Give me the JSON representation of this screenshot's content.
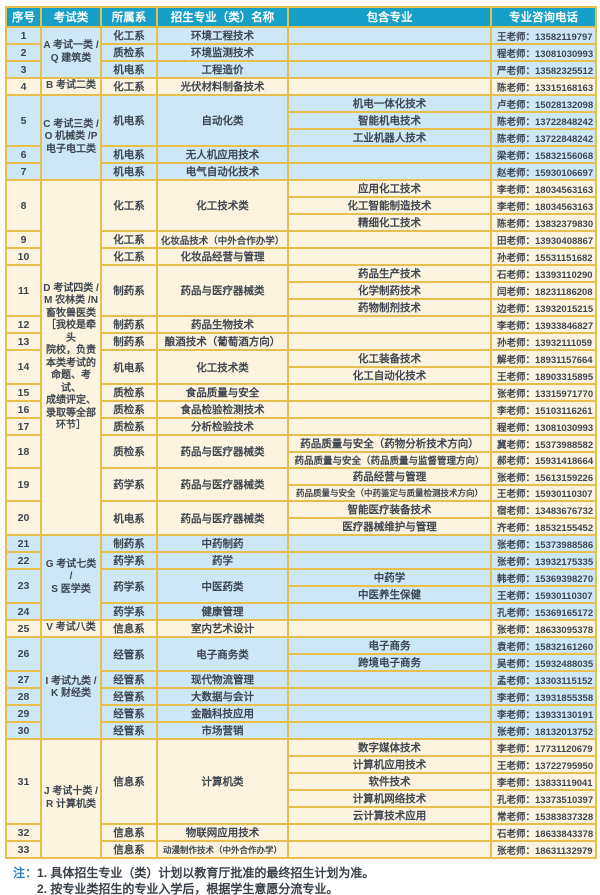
{
  "colors": {
    "header_bg": "#169fc7",
    "header_text": "#ffffff",
    "row_blue": "#cde7f7",
    "row_cream": "#fcf4e0",
    "border": "#e6bf4f",
    "body_text": "#3e4650",
    "note_label": "#2f80c3",
    "note_text": "#3a4148"
  },
  "table": {
    "columns": [
      "序号",
      "考试类",
      "所属系",
      "招生专业（类）名称",
      "包含专业",
      "专业咨询电话"
    ],
    "groups": [
      {
        "category_lines": [
          "A 考试一类 /",
          "Q 建筑类"
        ],
        "theme": "blue",
        "rows": [
          {
            "no": "1",
            "dept": "化工系",
            "major": "环境工程技术",
            "subs": [
              {
                "included": "",
                "phone": "王老师：13582119797"
              }
            ]
          },
          {
            "no": "2",
            "dept": "质检系",
            "major": "环境监测技术",
            "subs": [
              {
                "included": "",
                "phone": "程老师：13081030993"
              }
            ]
          },
          {
            "no": "3",
            "dept": "机电系",
            "major": "工程造价",
            "subs": [
              {
                "included": "",
                "phone": "严老师：13582325512"
              }
            ]
          }
        ]
      },
      {
        "category_lines": [
          "B 考试二类"
        ],
        "theme": "cream",
        "rows": [
          {
            "no": "4",
            "dept": "化工系",
            "major": "光伏材料制备技术",
            "subs": [
              {
                "included": "",
                "phone": "陈老师：13315168163"
              }
            ]
          }
        ]
      },
      {
        "category_lines": [
          "C 考试三类 /",
          "O 机械类 /P",
          "电子电工类"
        ],
        "theme": "blue",
        "rows": [
          {
            "no": "5",
            "dept": "机电系",
            "major": "自动化类",
            "subs": [
              {
                "included": "机电一体化技术",
                "phone": "卢老师：15028132098"
              },
              {
                "included": "智能机电技术",
                "phone": "陈老师：13722848242"
              },
              {
                "included": "工业机器人技术",
                "phone": "陈老师：13722848242"
              }
            ]
          },
          {
            "no": "6",
            "dept": "机电系",
            "major": "无人机应用技术",
            "subs": [
              {
                "included": "",
                "phone": "梁老师：15832156068"
              }
            ]
          },
          {
            "no": "7",
            "dept": "机电系",
            "major": "电气自动化技术",
            "subs": [
              {
                "included": "",
                "phone": "赵老师：15930106697"
              }
            ]
          }
        ]
      },
      {
        "category_lines": [
          "D 考试四类 /",
          "M 农林类 /N",
          "畜牧兽医类",
          "［我校是牵头",
          "院校，负责",
          "本类考试的",
          "命题、考试、",
          "成绩评定、",
          "录取等全部",
          "环节］"
        ],
        "theme": "cream",
        "rows": [
          {
            "no": "8",
            "dept": "化工系",
            "major": "化工技术类",
            "subs": [
              {
                "included": "应用化工技术",
                "phone": "李老师：18034563163"
              },
              {
                "included": "化工智能制造技术",
                "phone": "李老师：18034563163"
              },
              {
                "included": "精细化工技术",
                "phone": "陈老师：13832379830"
              }
            ]
          },
          {
            "no": "9",
            "dept": "化工系",
            "major": "化妆品技术（中外合作办学）",
            "subs": [
              {
                "included": "",
                "phone": "田老师：13930408867"
              }
            ]
          },
          {
            "no": "10",
            "dept": "化工系",
            "major": "化妆品经营与管理",
            "subs": [
              {
                "included": "",
                "phone": "孙老师：15531151682"
              }
            ]
          },
          {
            "no": "11",
            "dept": "制药系",
            "major": "药品与医疗器械类",
            "subs": [
              {
                "included": "药品生产技术",
                "phone": "石老师：13393110290"
              },
              {
                "included": "化学制药技术",
                "phone": "闫老师：18231186208"
              },
              {
                "included": "药物制剂技术",
                "phone": "边老师：13932015215"
              }
            ]
          },
          {
            "no": "12",
            "dept": "制药系",
            "major": "药品生物技术",
            "subs": [
              {
                "included": "",
                "phone": "李老师：13933846827"
              }
            ]
          },
          {
            "no": "13",
            "dept": "制药系",
            "major": "酿酒技术（葡萄酒方向）",
            "subs": [
              {
                "included": "",
                "phone": "孙老师：13932111059"
              }
            ]
          },
          {
            "no": "14",
            "dept": "机电系",
            "major": "化工技术类",
            "subs": [
              {
                "included": "化工装备技术",
                "phone": "解老师：18931157664"
              },
              {
                "included": "化工自动化技术",
                "phone": "王老师：18903315895"
              }
            ]
          },
          {
            "no": "15",
            "dept": "质检系",
            "major": "食品质量与安全",
            "subs": [
              {
                "included": "",
                "phone": "张老师：13315971770"
              }
            ]
          },
          {
            "no": "16",
            "dept": "质检系",
            "major": "食品检验检测技术",
            "subs": [
              {
                "included": "",
                "phone": "李老师：15103116261"
              }
            ]
          },
          {
            "no": "17",
            "dept": "质检系",
            "major": "分析检验技术",
            "subs": [
              {
                "included": "",
                "phone": "程老师：13081030993"
              }
            ]
          },
          {
            "no": "18",
            "dept": "质检系",
            "major": "药品与医疗器械类",
            "subs": [
              {
                "included": "药品质量与安全（药物分析技术方向）",
                "phone": "冀老师：15373988582"
              },
              {
                "included": "药品质量与安全（药品质量与监督管理方向）",
                "phone": "郝老师：15931418664"
              }
            ]
          },
          {
            "no": "19",
            "dept": "药学系",
            "major": "药品与医疗器械类",
            "subs": [
              {
                "included": "药品经营与管理",
                "phone": "张老师：15613159226"
              },
              {
                "included": "药品质量与安全（中药鉴定与质量检测技术方向）",
                "phone": "王老师：15930110307"
              }
            ]
          },
          {
            "no": "20",
            "dept": "机电系",
            "major": "药品与医疗器械类",
            "subs": [
              {
                "included": "智能医疗装备技术",
                "phone": "宿老师：13483676732"
              },
              {
                "included": "医疗器械维护与管理",
                "phone": "齐老师：18532155452"
              }
            ]
          }
        ]
      },
      {
        "category_lines": [
          "G 考试七类 /",
          "S 医学类"
        ],
        "theme": "blue",
        "rows": [
          {
            "no": "21",
            "dept": "制药系",
            "major": "中药制药",
            "subs": [
              {
                "included": "",
                "phone": "张老师：15373988586"
              }
            ]
          },
          {
            "no": "22",
            "dept": "药学系",
            "major": "药学",
            "subs": [
              {
                "included": "",
                "phone": "张老师：13932175335"
              }
            ]
          },
          {
            "no": "23",
            "dept": "药学系",
            "major": "中医药类",
            "subs": [
              {
                "included": "中药学",
                "phone": "韩老师：15369398270"
              },
              {
                "included": "中医养生保健",
                "phone": "王老师：15930110307"
              }
            ]
          },
          {
            "no": "24",
            "dept": "药学系",
            "major": "健康管理",
            "subs": [
              {
                "included": "",
                "phone": "孔老师：15369165172"
              }
            ]
          }
        ]
      },
      {
        "category_lines": [
          "V 考试八类"
        ],
        "theme": "cream",
        "rows": [
          {
            "no": "25",
            "dept": "信息系",
            "major": "室内艺术设计",
            "subs": [
              {
                "included": "",
                "phone": "张老师：18633095378"
              }
            ]
          }
        ]
      },
      {
        "category_lines": [
          "I 考试九类 /",
          "K 财经类"
        ],
        "theme": "blue",
        "rows": [
          {
            "no": "26",
            "dept": "经管系",
            "major": "电子商务类",
            "subs": [
              {
                "included": "电子商务",
                "phone": "袁老师：15832161260"
              },
              {
                "included": "跨境电子商务",
                "phone": "吴老师：15932488035"
              }
            ]
          },
          {
            "no": "27",
            "dept": "经管系",
            "major": "现代物流管理",
            "subs": [
              {
                "included": "",
                "phone": "孟老师：13303115152"
              }
            ]
          },
          {
            "no": "28",
            "dept": "经管系",
            "major": "大数据与会计",
            "subs": [
              {
                "included": "",
                "phone": "李老师：13931855358"
              }
            ]
          },
          {
            "no": "29",
            "dept": "经管系",
            "major": "金融科技应用",
            "subs": [
              {
                "included": "",
                "phone": "李老师：13933130191"
              }
            ]
          },
          {
            "no": "30",
            "dept": "经管系",
            "major": "市场营销",
            "subs": [
              {
                "included": "",
                "phone": "张老师：18132013752"
              }
            ]
          }
        ]
      },
      {
        "category_lines": [
          "J 考试十类 /",
          "R 计算机类"
        ],
        "theme": "cream",
        "rows": [
          {
            "no": "31",
            "dept": "信息系",
            "major": "计算机类",
            "subs": [
              {
                "included": "数字媒体技术",
                "phone": "李老师：17731120679"
              },
              {
                "included": "计算机应用技术",
                "phone": "王老师：13722795950"
              },
              {
                "included": "软件技术",
                "phone": "李老师：13833119041"
              },
              {
                "included": "计算机网络技术",
                "phone": "孔老师：13373510397"
              },
              {
                "included": "云计算技术应用",
                "phone": "常老师：15383837328"
              }
            ]
          },
          {
            "no": "32",
            "dept": "信息系",
            "major": "物联网应用技术",
            "subs": [
              {
                "included": "",
                "phone": "石老师：18633843378"
              }
            ]
          },
          {
            "no": "33",
            "dept": "信息系",
            "major": "动漫制作技术（中外合作办学）",
            "subs": [
              {
                "included": "",
                "phone": "张老师：18631132979"
              }
            ]
          }
        ]
      }
    ]
  },
  "notes": {
    "label": "注：",
    "items": [
      "1. 具体招生专业（类）计划以教育厅批准的最终招生计划为准。",
      "2. 按专业类招生的专业入学后，根据学生意愿分流专业。"
    ]
  }
}
